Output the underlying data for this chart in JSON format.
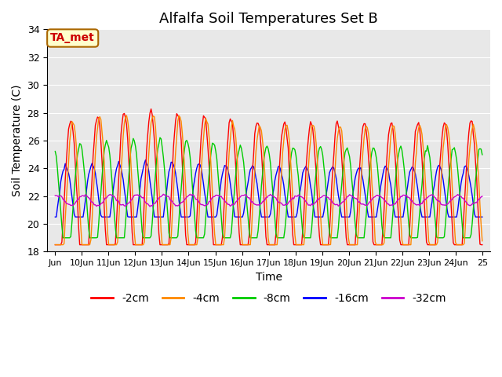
{
  "title": "Alfalfa Soil Temperatures Set B",
  "xlabel": "Time",
  "ylabel": "Soil Temperature (C)",
  "ylim": [
    18,
    34
  ],
  "yticks": [
    18,
    20,
    22,
    24,
    26,
    28,
    30,
    32,
    34
  ],
  "xtick_labels": [
    "Jun",
    "10Jun",
    "11Jun",
    "12Jun",
    "13Jun",
    "14Jun",
    "15Jun",
    "16Jun",
    "17Jun",
    "18Jun",
    "19Jun",
    "20Jun",
    "21Jun",
    "22Jun",
    "23Jun",
    "24Jun",
    "25"
  ],
  "colors": {
    "-2cm": "#ff0000",
    "-4cm": "#ff8800",
    "-8cm": "#00cc00",
    "-16cm": "#0000ff",
    "-32cm": "#cc00cc"
  },
  "annotation_text": "TA_met",
  "annotation_bg": "#ffffcc",
  "annotation_border": "#aa6600",
  "annotation_text_color": "#cc0000",
  "plot_bg": "#e8e8e8",
  "fig_bg": "#ffffff",
  "grid_color": "#ffffff",
  "title_fontsize": 13,
  "axis_label_fontsize": 10,
  "tick_fontsize": 9,
  "legend_fontsize": 10,
  "n_days": 16,
  "hours_per_day": 24,
  "mean_temp": 21.5,
  "amp_2cm": 5.8,
  "amp_4cm": 5.6,
  "amp_8cm": 4.0,
  "amp_16cm": 2.3,
  "amp_32cm": 0.35,
  "phase_lag_4cm": 0.08,
  "phase_lag_8cm": 0.35,
  "phase_lag_16cm": 0.8,
  "phase_lag_32cm": 2.5
}
